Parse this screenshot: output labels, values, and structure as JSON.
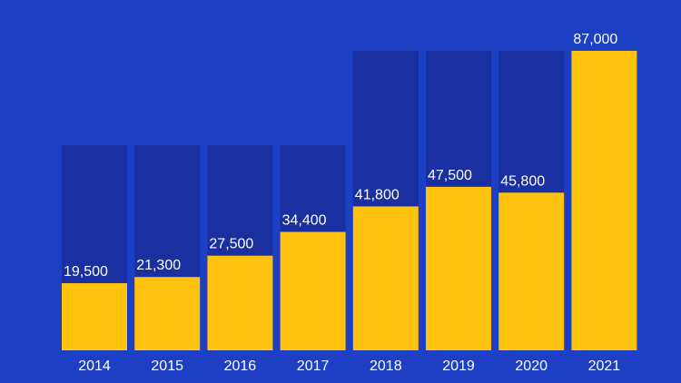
{
  "chart_data": {
    "type": "bar",
    "categories": [
      "2014",
      "2015",
      "2016",
      "2017",
      "2018",
      "2019",
      "2020",
      "2021"
    ],
    "values": [
      19500,
      21300,
      27500,
      34400,
      41800,
      47500,
      45800,
      87000
    ],
    "value_labels": [
      "19,500",
      "21,300",
      "27,500",
      "34,400",
      "41,800",
      "47,500",
      "45,800",
      "87,000"
    ],
    "title": "",
    "xlabel": "",
    "ylabel": "",
    "ylim": [
      0,
      87000
    ],
    "grid": false,
    "legend": "none",
    "colors": {
      "background": "#1d3fc4",
      "bar": "#ffc20e",
      "bar_track": "#1a2fa0",
      "text": "#ffffff"
    }
  }
}
